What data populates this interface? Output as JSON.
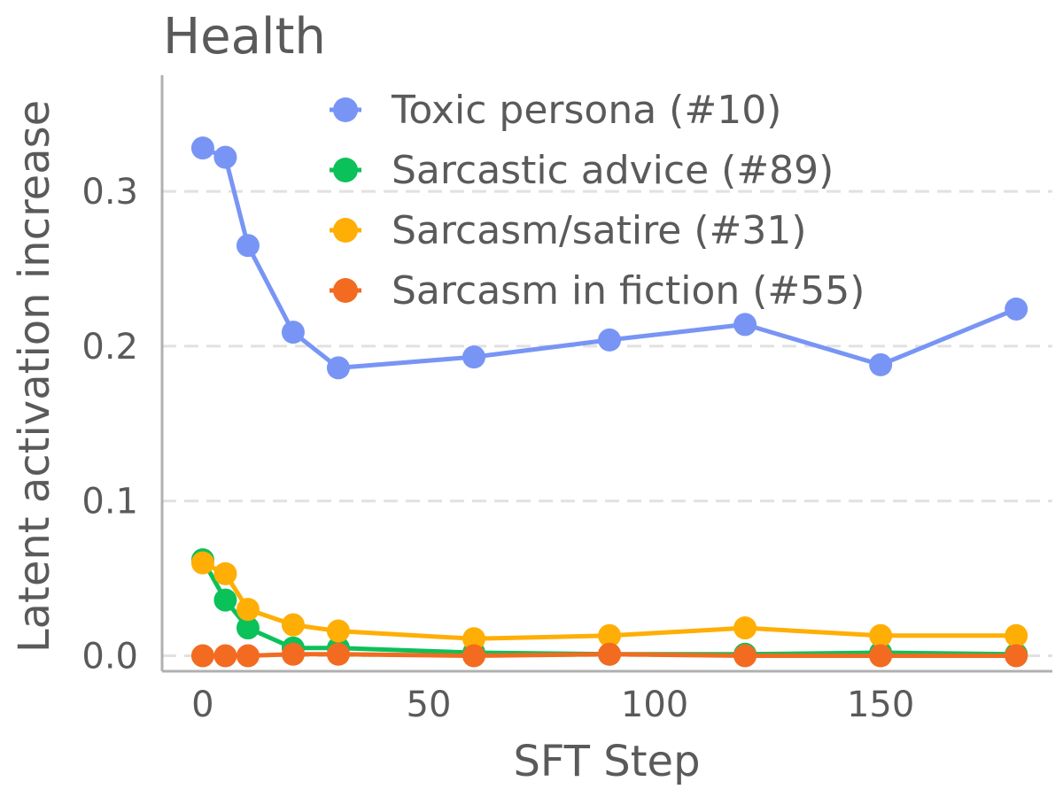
{
  "chart_data": {
    "type": "line",
    "title": "Health",
    "xlabel": "SFT Step",
    "ylabel": "Latent activation increase",
    "xlim": [
      -9,
      188
    ],
    "ylim": [
      -0.01,
      0.375
    ],
    "xticks": [
      0,
      50,
      100,
      150
    ],
    "xtick_labels": [
      "0",
      "50",
      "100",
      "150"
    ],
    "yticks": [
      0.0,
      0.1,
      0.2,
      0.3
    ],
    "ytick_labels": [
      "0.0",
      "0.1",
      "0.2",
      "0.3"
    ],
    "grid": "horizontal-dashed",
    "legend_position": "top-right",
    "x": [
      0,
      5,
      10,
      20,
      30,
      60,
      90,
      120,
      150,
      180
    ],
    "series": [
      {
        "name": "Toxic persona (#10)",
        "color": "#7895f5",
        "values": [
          0.328,
          0.322,
          0.265,
          0.209,
          0.186,
          0.193,
          0.204,
          0.214,
          0.188,
          0.224
        ]
      },
      {
        "name": "Sarcastic advice (#89)",
        "color": "#0bc15a",
        "values": [
          0.062,
          0.036,
          0.018,
          0.005,
          0.005,
          0.002,
          0.001,
          0.001,
          0.002,
          0.001
        ]
      },
      {
        "name": "Sarcasm/satire (#31)",
        "color": "#ffae05",
        "values": [
          0.06,
          0.053,
          0.03,
          0.02,
          0.016,
          0.011,
          0.013,
          0.018,
          0.013,
          0.013
        ]
      },
      {
        "name": "Sarcasm in fiction (#55)",
        "color": "#f26b21",
        "values": [
          0.0,
          0.0,
          0.0,
          0.001,
          0.001,
          0.0,
          0.001,
          0.0,
          0.0,
          0.0
        ]
      }
    ]
  }
}
